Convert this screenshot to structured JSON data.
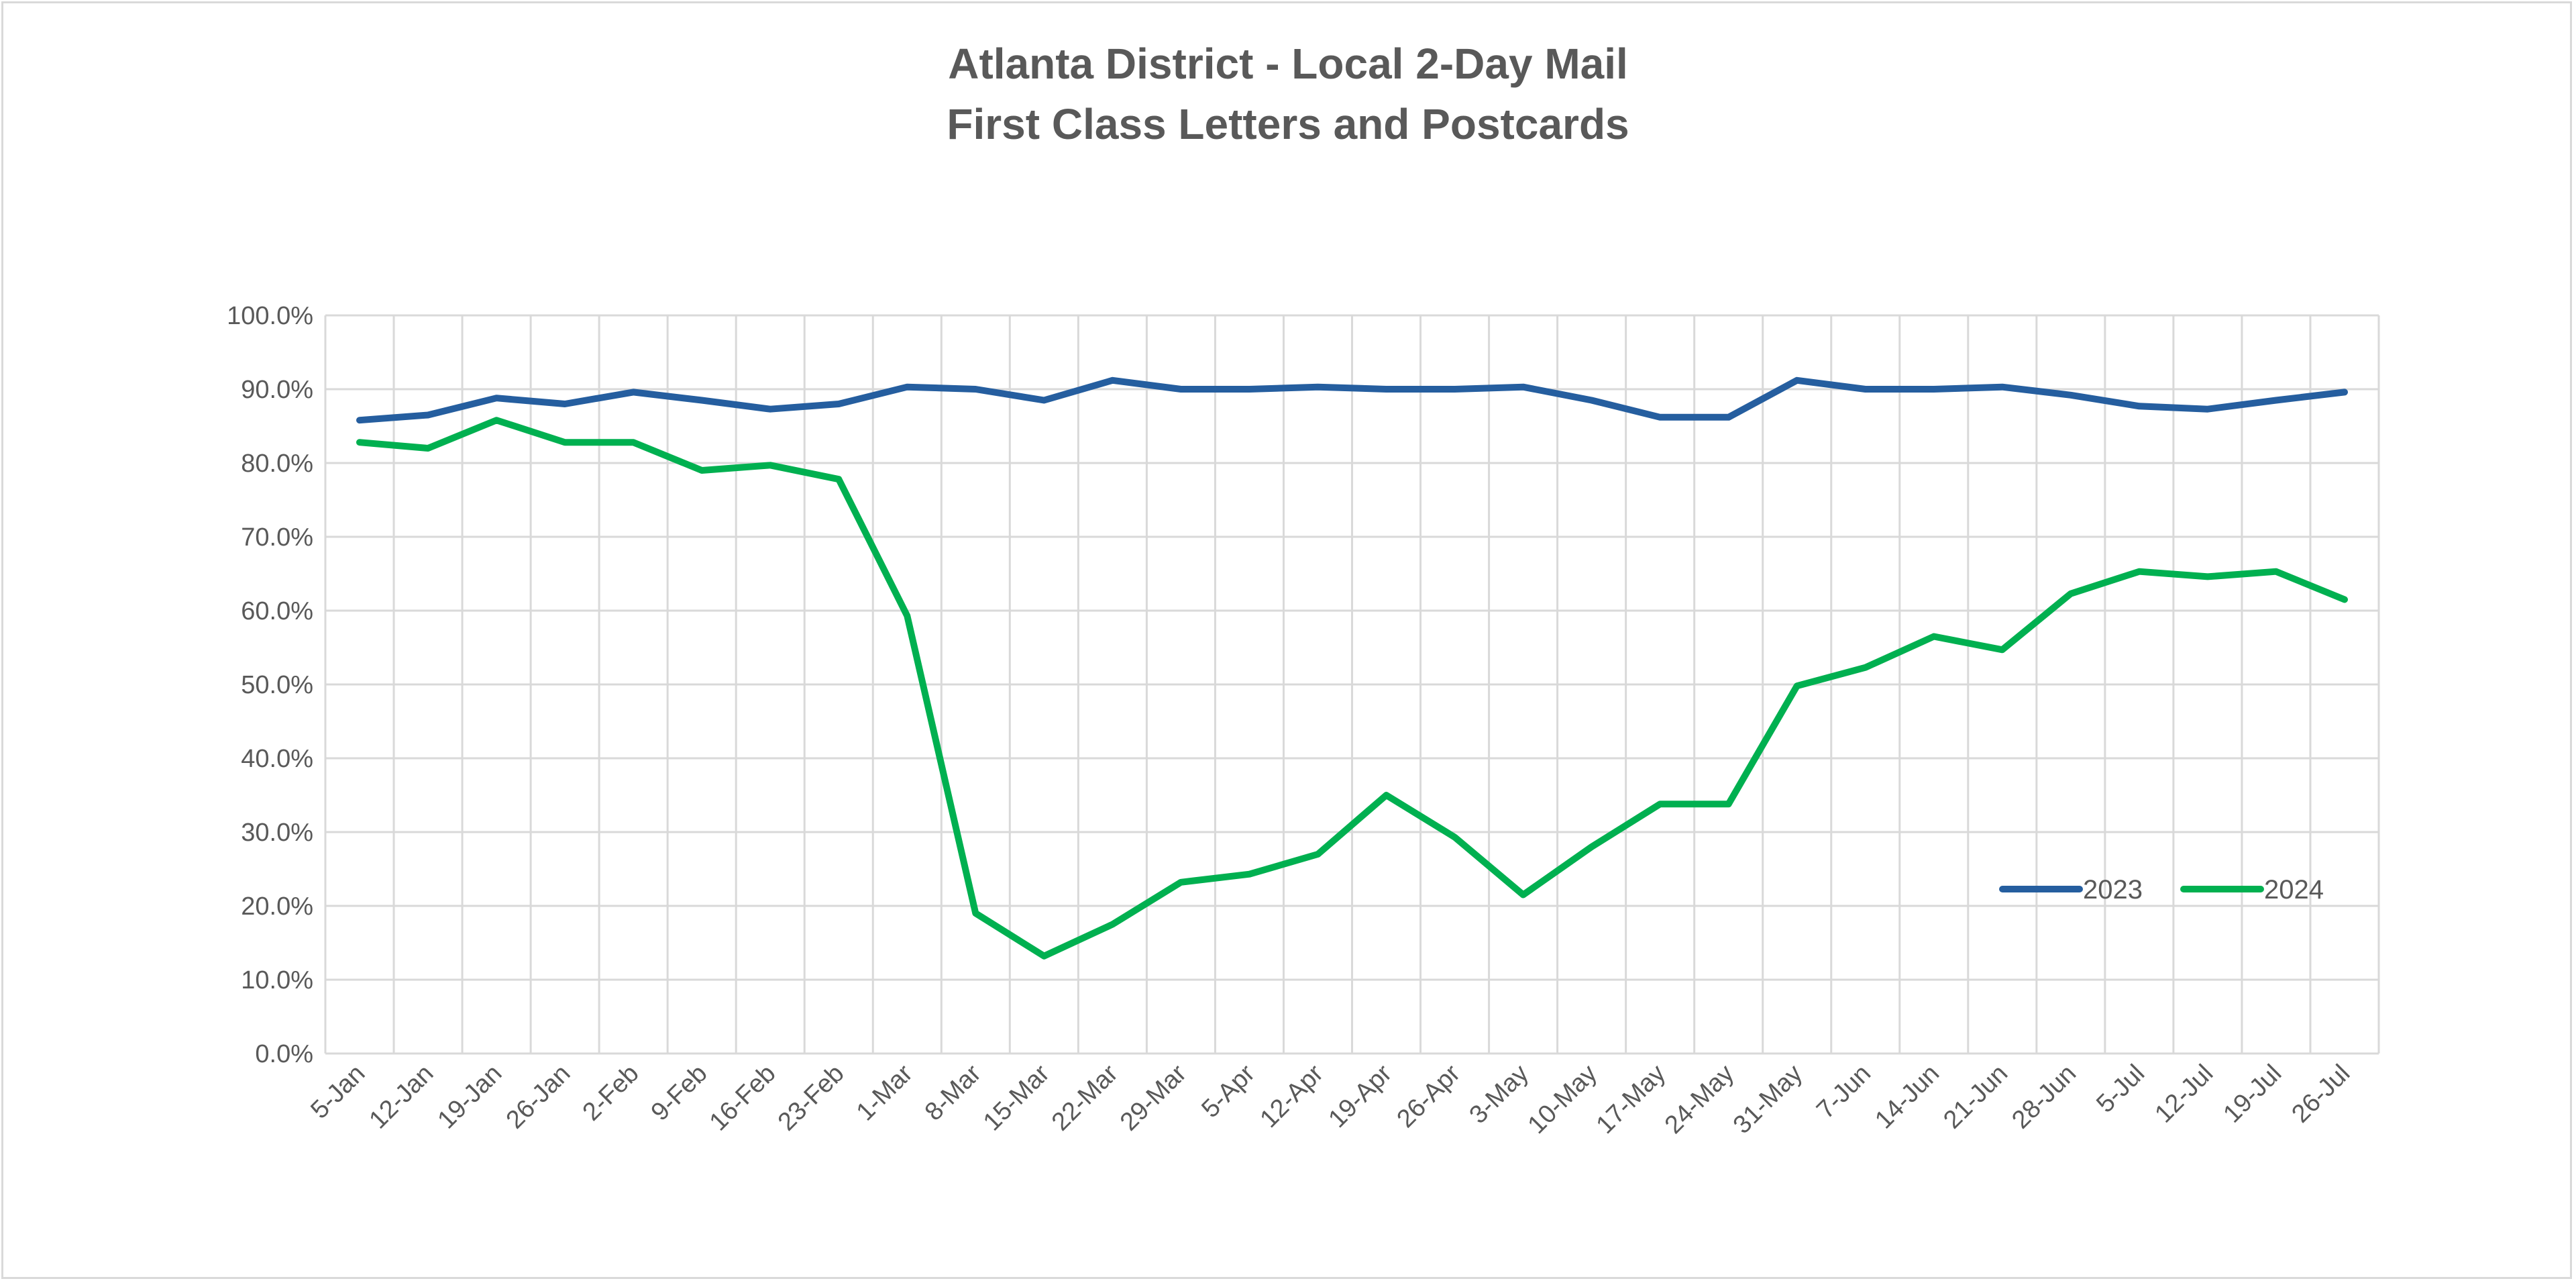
{
  "chart_data": {
    "type": "line",
    "title": [
      "Atlanta District - Local 2-Day Mail",
      "First Class Letters and Postcards"
    ],
    "xlabel": "",
    "ylabel": "",
    "ylim": [
      0,
      100
    ],
    "yticks": [
      "0.0%",
      "10.0%",
      "20.0%",
      "30.0%",
      "40.0%",
      "50.0%",
      "60.0%",
      "70.0%",
      "80.0%",
      "90.0%",
      "100.0%"
    ],
    "grid": true,
    "legend_position": "bottom-right inside",
    "categories": [
      "5-Jan",
      "12-Jan",
      "19-Jan",
      "26-Jan",
      "2-Feb",
      "9-Feb",
      "16-Feb",
      "23-Feb",
      "1-Mar",
      "8-Mar",
      "15-Mar",
      "22-Mar",
      "29-Mar",
      "5-Apr",
      "12-Apr",
      "19-Apr",
      "26-Apr",
      "3-May",
      "10-May",
      "17-May",
      "24-May",
      "31-May",
      "7-Jun",
      "14-Jun",
      "21-Jun",
      "28-Jun",
      "5-Jul",
      "12-Jul",
      "19-Jul",
      "26-Jul"
    ],
    "series": [
      {
        "name": "2023",
        "color": "#255e9f",
        "values": [
          85.8,
          86.5,
          88.8,
          88.0,
          89.6,
          88.5,
          87.3,
          88.0,
          90.3,
          90.0,
          88.5,
          91.2,
          90.0,
          90.0,
          90.3,
          90.0,
          90.0,
          90.3,
          88.5,
          86.2,
          86.2,
          91.2,
          90.0,
          90.0,
          90.3,
          89.2,
          87.7,
          87.3,
          88.5,
          89.6
        ]
      },
      {
        "name": "2024",
        "color": "#00b050",
        "values": [
          82.8,
          82.0,
          85.8,
          82.8,
          82.8,
          79.0,
          79.7,
          77.8,
          59.3,
          19.0,
          13.2,
          17.5,
          23.2,
          24.3,
          27.0,
          35.0,
          29.3,
          21.5,
          28.0,
          33.8,
          33.8,
          49.8,
          52.3,
          56.5,
          54.7,
          62.3,
          65.3,
          64.6,
          65.3,
          61.5
        ]
      }
    ]
  }
}
